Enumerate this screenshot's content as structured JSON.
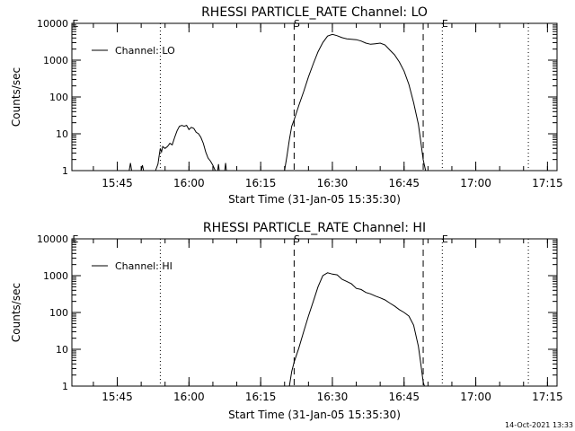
{
  "chart_data": [
    {
      "type": "line",
      "title": "RHESSI PARTICLE_RATE Channel: LO",
      "xlabel": "Start Time (31-Jan-05 15:35:30)",
      "ylabel": "Counts/sec",
      "y_scale": "log",
      "ylim": [
        1,
        10000
      ],
      "xlim": [
        "15:35:30",
        "17:17:00"
      ],
      "x_ticks": [
        "15:45",
        "16:00",
        "16:15",
        "16:30",
        "16:45",
        "17:00",
        "17:15"
      ],
      "y_ticks": [
        "1",
        "10",
        "100",
        "1000",
        "10000"
      ],
      "legend": {
        "placement": "top-left",
        "entries": [
          "Channel: LO"
        ]
      },
      "markers": [
        {
          "label": "",
          "time": "15:54",
          "style": "dotted"
        },
        {
          "label": "S",
          "time": "16:22",
          "style": "dashed"
        },
        {
          "label": "",
          "time": "16:49",
          "style": "dashed"
        },
        {
          "label": "E",
          "time": "16:53",
          "style": "dotted"
        },
        {
          "label": "",
          "time": "17:11",
          "style": "dotted"
        }
      ],
      "series": [
        {
          "name": "Channel: LO",
          "segments": [
            [
              [
                "15:47:30",
                1
              ],
              [
                "15:47:45",
                1.6
              ],
              [
                "15:48:00",
                1
              ]
            ],
            [
              [
                "15:50:00",
                1
              ],
              [
                "15:50:15",
                1.4
              ],
              [
                "15:50:30",
                1
              ]
            ],
            [
              [
                "15:53:00",
                1
              ],
              [
                "15:53:30",
                1.5
              ],
              [
                "15:53:45",
                2.5
              ],
              [
                "15:54:00",
                4
              ],
              [
                "15:54:15",
                3.2
              ],
              [
                "15:54:30",
                4.5
              ],
              [
                "15:55:00",
                4
              ],
              [
                "15:55:30",
                4.5
              ],
              [
                "15:56:00",
                5.5
              ],
              [
                "15:56:30",
                5
              ],
              [
                "15:57:00",
                8
              ],
              [
                "15:57:30",
                12
              ],
              [
                "15:58:00",
                16
              ],
              [
                "15:58:30",
                17
              ],
              [
                "15:59:00",
                16
              ],
              [
                "15:59:30",
                17
              ],
              [
                "16:00:00",
                13
              ],
              [
                "16:00:30",
                15
              ],
              [
                "16:01:00",
                14
              ],
              [
                "16:01:30",
                11
              ],
              [
                "16:02:00",
                10
              ],
              [
                "16:02:30",
                8
              ],
              [
                "16:03:00",
                5.5
              ],
              [
                "16:03:30",
                3.2
              ],
              [
                "16:04:00",
                2.2
              ],
              [
                "16:04:30",
                1.8
              ],
              [
                "16:05:00",
                1.4
              ],
              [
                "16:05:30",
                1
              ]
            ],
            [
              [
                "16:06:00",
                1
              ],
              [
                "16:06:10",
                1.5
              ],
              [
                "16:06:20",
                1
              ]
            ],
            [
              [
                "16:07:30",
                1
              ],
              [
                "16:07:40",
                1.6
              ],
              [
                "16:07:50",
                1
              ]
            ],
            [
              [
                "16:20:00",
                1
              ],
              [
                "16:20:30",
                2.5
              ],
              [
                "16:21:00",
                7
              ],
              [
                "16:21:30",
                16
              ],
              [
                "16:22:00",
                24
              ],
              [
                "16:23:00",
                60
              ],
              [
                "16:24:00",
                140
              ],
              [
                "16:25:00",
                350
              ],
              [
                "16:26:00",
                800
              ],
              [
                "16:27:00",
                1700
              ],
              [
                "16:28:00",
                3000
              ],
              [
                "16:29:00",
                4500
              ],
              [
                "16:30:00",
                5000
              ],
              [
                "16:31:00",
                4600
              ],
              [
                "16:32:00",
                4100
              ],
              [
                "16:33:00",
                3800
              ],
              [
                "16:34:00",
                3700
              ],
              [
                "16:35:00",
                3600
              ],
              [
                "16:36:00",
                3300
              ],
              [
                "16:37:00",
                2900
              ],
              [
                "16:38:00",
                2700
              ],
              [
                "16:39:00",
                2800
              ],
              [
                "16:40:00",
                2900
              ],
              [
                "16:41:00",
                2600
              ],
              [
                "16:42:00",
                1900
              ],
              [
                "16:43:00",
                1400
              ],
              [
                "16:44:00",
                900
              ],
              [
                "16:45:00",
                500
              ],
              [
                "16:46:00",
                220
              ],
              [
                "16:47:00",
                70
              ],
              [
                "16:48:00",
                18
              ],
              [
                "16:48:30",
                6
              ],
              [
                "16:49:00",
                2
              ],
              [
                "16:49:30",
                1
              ]
            ]
          ]
        }
      ]
    },
    {
      "type": "line",
      "title": "RHESSI PARTICLE_RATE Channel: HI",
      "xlabel": "Start Time (31-Jan-05 15:35:30)",
      "ylabel": "Counts/sec",
      "y_scale": "log",
      "ylim": [
        1,
        10000
      ],
      "xlim": [
        "15:35:30",
        "17:17:00"
      ],
      "x_ticks": [
        "15:45",
        "16:00",
        "16:15",
        "16:30",
        "16:45",
        "17:00",
        "17:15"
      ],
      "y_ticks": [
        "1",
        "10",
        "100",
        "1000",
        "10000"
      ],
      "legend": {
        "placement": "top-left",
        "entries": [
          "Channel: HI"
        ]
      },
      "markers": [
        {
          "label": "",
          "time": "15:54",
          "style": "dotted"
        },
        {
          "label": "S",
          "time": "16:22",
          "style": "dashed"
        },
        {
          "label": "",
          "time": "16:49",
          "style": "dashed"
        },
        {
          "label": "E",
          "time": "16:53",
          "style": "dotted"
        },
        {
          "label": "",
          "time": "17:11",
          "style": "dotted"
        }
      ],
      "series": [
        {
          "name": "Channel: HI",
          "segments": [
            [
              [
                "16:21:00",
                1
              ],
              [
                "16:21:30",
                2.5
              ],
              [
                "16:22:00",
                4.5
              ],
              [
                "16:23:00",
                11
              ],
              [
                "16:24:00",
                30
              ],
              [
                "16:25:00",
                80
              ],
              [
                "16:26:00",
                200
              ],
              [
                "16:27:00",
                500
              ],
              [
                "16:28:00",
                1000
              ],
              [
                "16:29:00",
                1200
              ],
              [
                "16:30:00",
                1100
              ],
              [
                "16:31:00",
                1050
              ],
              [
                "16:32:00",
                800
              ],
              [
                "16:33:00",
                700
              ],
              [
                "16:34:00",
                600
              ],
              [
                "16:35:00",
                450
              ],
              [
                "16:36:00",
                420
              ],
              [
                "16:37:00",
                350
              ],
              [
                "16:38:00",
                320
              ],
              [
                "16:39:00",
                280
              ],
              [
                "16:40:00",
                250
              ],
              [
                "16:41:00",
                220
              ],
              [
                "16:42:00",
                180
              ],
              [
                "16:43:00",
                150
              ],
              [
                "16:44:00",
                120
              ],
              [
                "16:45:00",
                100
              ],
              [
                "16:46:00",
                80
              ],
              [
                "16:47:00",
                45
              ],
              [
                "16:48:00",
                12
              ],
              [
                "16:48:30",
                4
              ],
              [
                "16:49:00",
                1.3
              ],
              [
                "16:49:15",
                1
              ]
            ]
          ]
        }
      ]
    }
  ],
  "footer": {
    "timestamp": "14-Oct-2021 13:33"
  }
}
